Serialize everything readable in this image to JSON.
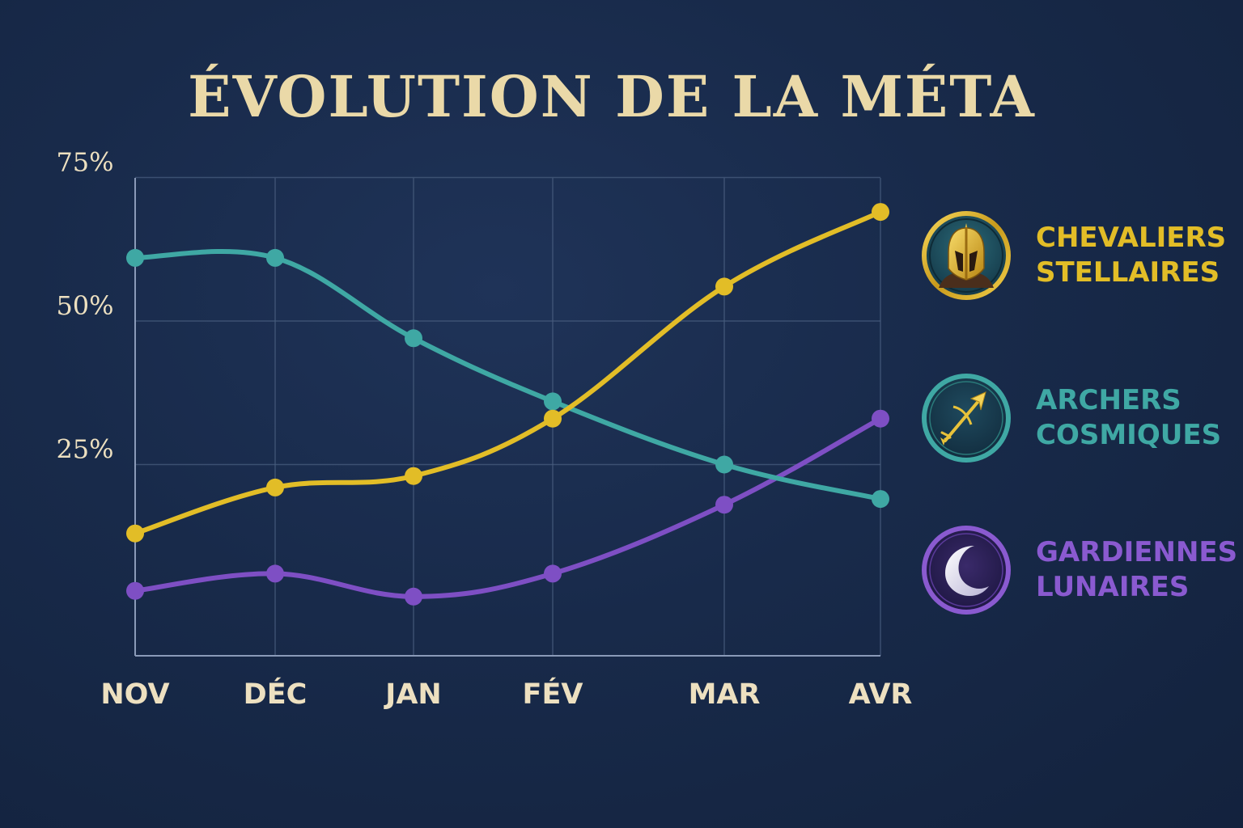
{
  "chart_data": {
    "type": "line",
    "title": "ÉVOLUTION DE LA MÉTA",
    "xlabel": "",
    "ylabel": "",
    "categories": [
      "NOV",
      "DÉC",
      "JAN",
      "FÉV",
      "MAR",
      "AVR"
    ],
    "y_ticks": [
      "75%",
      "50%",
      "25%"
    ],
    "y_tick_values": [
      75,
      50,
      25
    ],
    "ylim": [
      0,
      75
    ],
    "grid": true,
    "legend_position": "right",
    "series": [
      {
        "name": "CHEVALIERS STELLAIRES",
        "name_lines": [
          "CHEVALIERS",
          "STELLAIRES"
        ],
        "color": "#e2bd27",
        "icon": "helmet-icon",
        "values": [
          13,
          21,
          23,
          33,
          56,
          69
        ]
      },
      {
        "name": "ARCHERS COSMIQUES",
        "name_lines": [
          "ARCHERS",
          "COSMIQUES"
        ],
        "color": "#3fa8a4",
        "icon": "arrow-icon",
        "values": [
          61,
          61,
          47,
          36,
          25,
          19
        ]
      },
      {
        "name": "GARDIENNES LUNAIRES",
        "name_lines": [
          "GARDIENNES",
          "LUNAIRES"
        ],
        "color": "#7e4fc4",
        "icon": "crescent-moon-icon",
        "values": [
          3,
          6,
          2,
          6,
          18,
          33
        ]
      }
    ]
  },
  "colors": {
    "background": "#1a2c4d",
    "title": "#ead9a8",
    "axis_text": "#ede0c0",
    "grid": "#4a6080"
  }
}
